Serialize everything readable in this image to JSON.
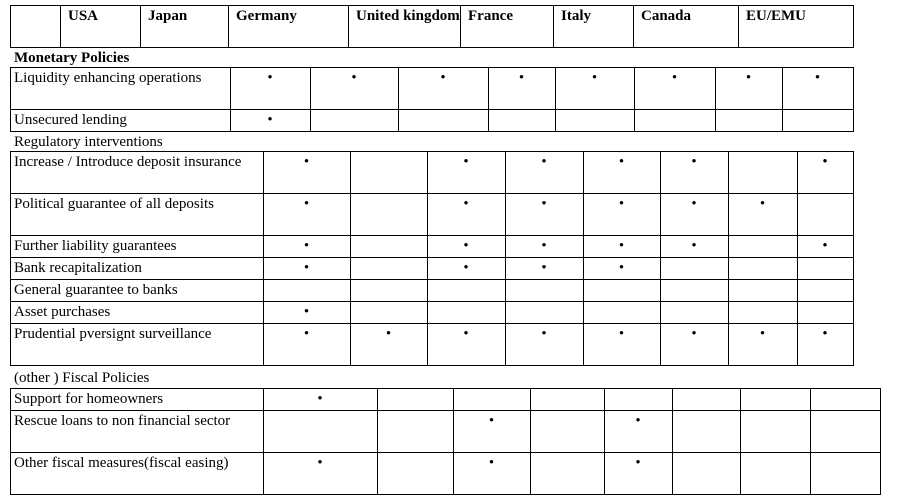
{
  "header": [
    "USA",
    "Japan",
    "Germany",
    "United kingdom",
    "France",
    "Italy",
    "Canada",
    "EU/EMU"
  ],
  "sections": [
    {
      "title": "Monetary  Policies",
      "rows": [
        {
          "label": "Liquidity enhancing operations",
          "cells": [
            "•",
            "•",
            "•",
            "•",
            "•",
            "•",
            "•",
            "•"
          ]
        },
        {
          "label": "Unsecured lending",
          "cells": [
            "•",
            null,
            null,
            null,
            null,
            null,
            null,
            null
          ]
        }
      ]
    },
    {
      "title": "Regulatory interventions",
      "rows": [
        {
          "label": "Increase / Introduce deposit insurance",
          "cells": [
            "•",
            null,
            "•",
            "•",
            "•",
            "•",
            null,
            "•"
          ]
        },
        {
          "label": "Political guarantee of all deposits",
          "cells": [
            "•",
            null,
            "•",
            "•",
            "•",
            "•",
            "•",
            null
          ]
        },
        {
          "label": "Further liability guarantees",
          "cells": [
            "•",
            null,
            "•",
            "•",
            "•",
            "•",
            null,
            "•"
          ]
        },
        {
          "label": "Bank recapitalization",
          "cells": [
            "•",
            null,
            "•",
            "•",
            "•",
            null,
            null,
            null
          ]
        },
        {
          "label": "General guarantee to banks",
          "cells": [
            null,
            null,
            null,
            null,
            null,
            null,
            null,
            null
          ]
        },
        {
          "label": "Asset purchases",
          "cells": [
            "•",
            null,
            null,
            null,
            null,
            null,
            null,
            null
          ]
        },
        {
          "label": "Prudential pversignt surveillance",
          "cells": [
            "•",
            "•",
            "•",
            "•",
            "•",
            "•",
            "•",
            "•"
          ]
        }
      ]
    },
    {
      "title": "(other ) Fiscal Policies",
      "rows": [
        {
          "label": "Support for  homeowners",
          "cells": [
            "•",
            null,
            null,
            null,
            null,
            null,
            null,
            null
          ]
        },
        {
          "label": "Rescue loans to non financial sector",
          "cells": [
            null,
            null,
            "•",
            null,
            "•",
            null,
            null,
            null
          ]
        },
        {
          "label": "Other fiscal measures(fiscal easing)",
          "cells": [
            "•",
            null,
            "•",
            null,
            "•",
            null,
            null,
            null
          ]
        }
      ]
    }
  ]
}
